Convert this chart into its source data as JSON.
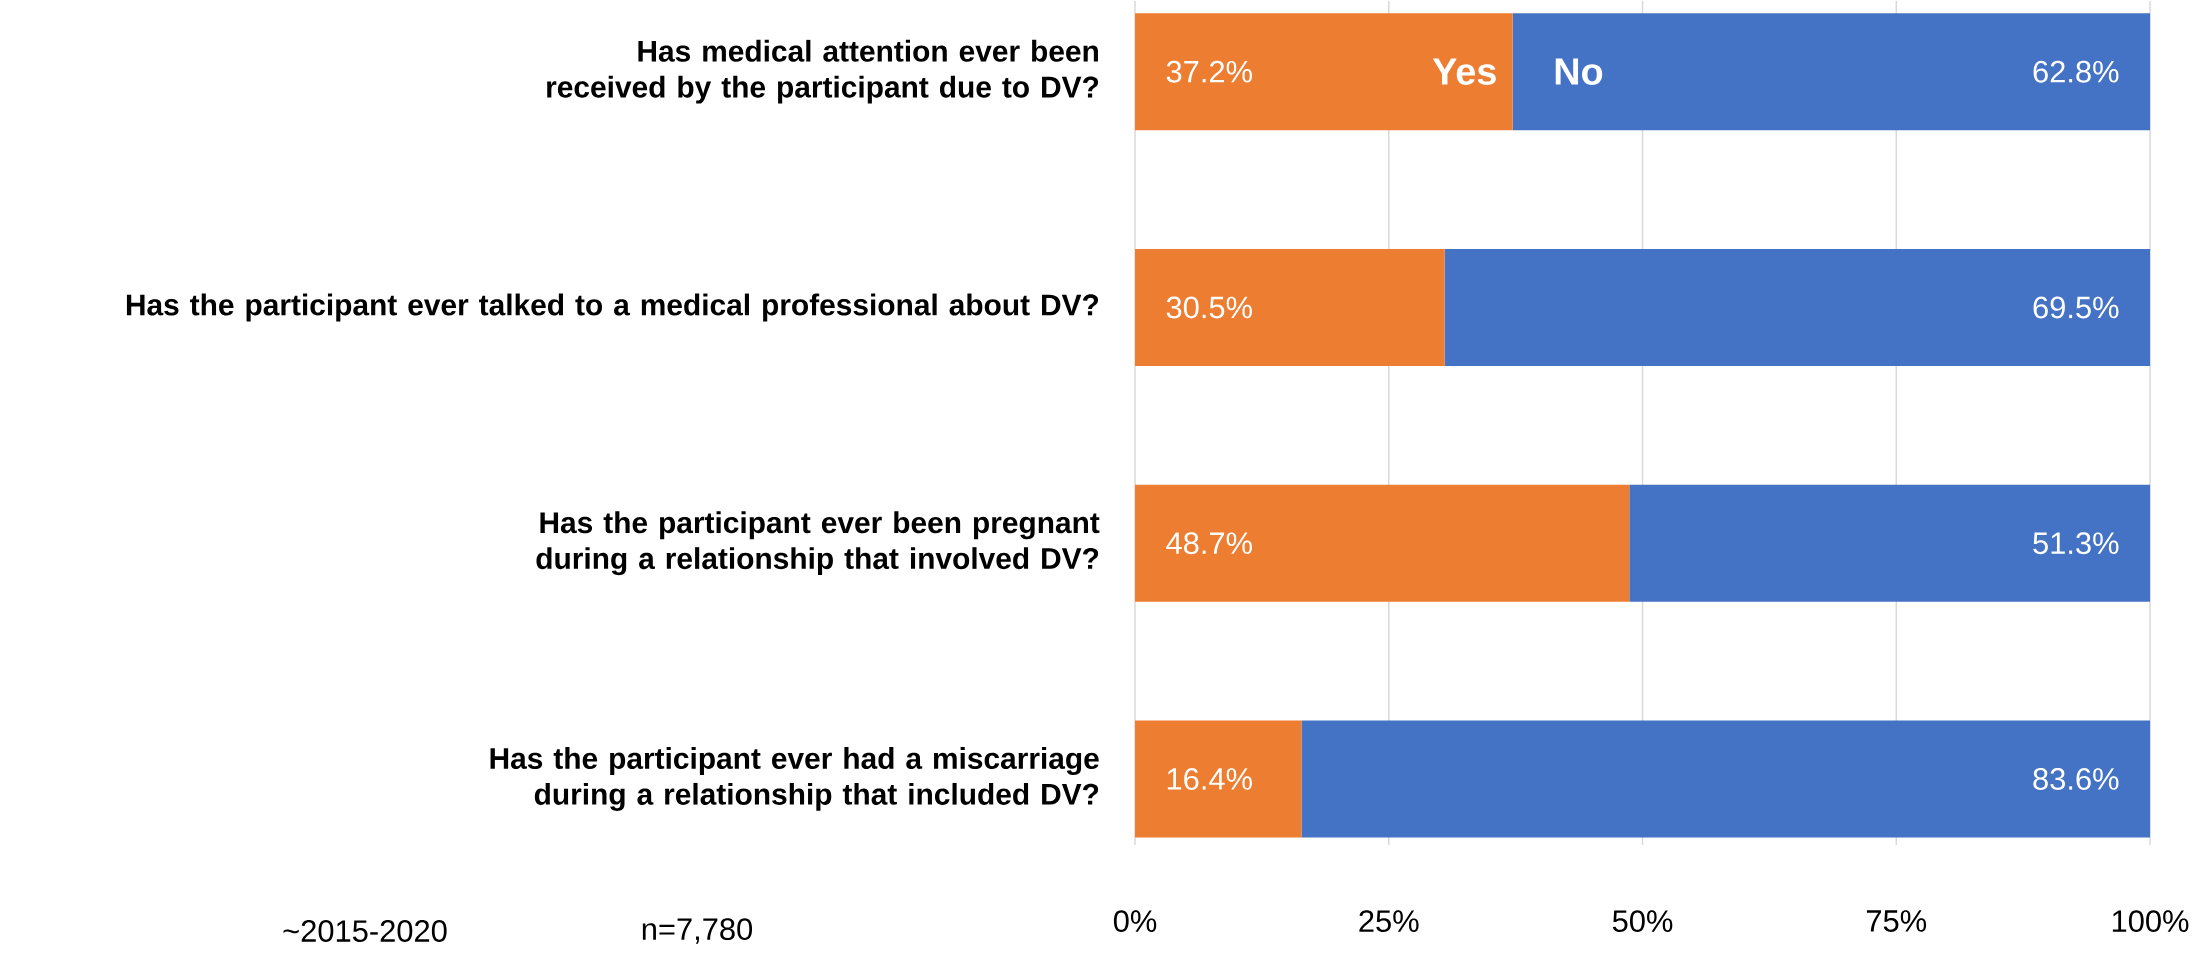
{
  "chart_data": {
    "type": "bar",
    "orientation": "horizontal",
    "stacked": true,
    "categories": [
      "Has medical attention ever been received by the participant due to DV?",
      "Has the participant ever talked to a medical professional about DV?",
      "Has the participant ever been pregnant during a relationship that involved DV?",
      "Has the participant ever had a miscarriage during a relationship that included DV?"
    ],
    "series": [
      {
        "name": "Yes",
        "color": "#ed7d31",
        "values": [
          37.2,
          30.5,
          48.7,
          16.4
        ],
        "value_labels": [
          "37.2%",
          "30.5%",
          "48.7%",
          "16.4%"
        ]
      },
      {
        "name": "No",
        "color": "#4472c4",
        "values": [
          62.8,
          69.5,
          51.3,
          83.6
        ],
        "value_labels": [
          "62.8%",
          "69.5%",
          "51.3%",
          "83.6%"
        ]
      }
    ],
    "xlim": [
      0,
      100
    ],
    "xticks": [
      {
        "value": 0,
        "label": "0%"
      },
      {
        "value": 25,
        "label": "25%"
      },
      {
        "value": 50,
        "label": "50%"
      },
      {
        "value": 75,
        "label": "75%"
      },
      {
        "value": 100,
        "label": "100%"
      }
    ],
    "grid": "x",
    "annotations": [
      "~2015-2020",
      "n=7,780"
    ]
  }
}
